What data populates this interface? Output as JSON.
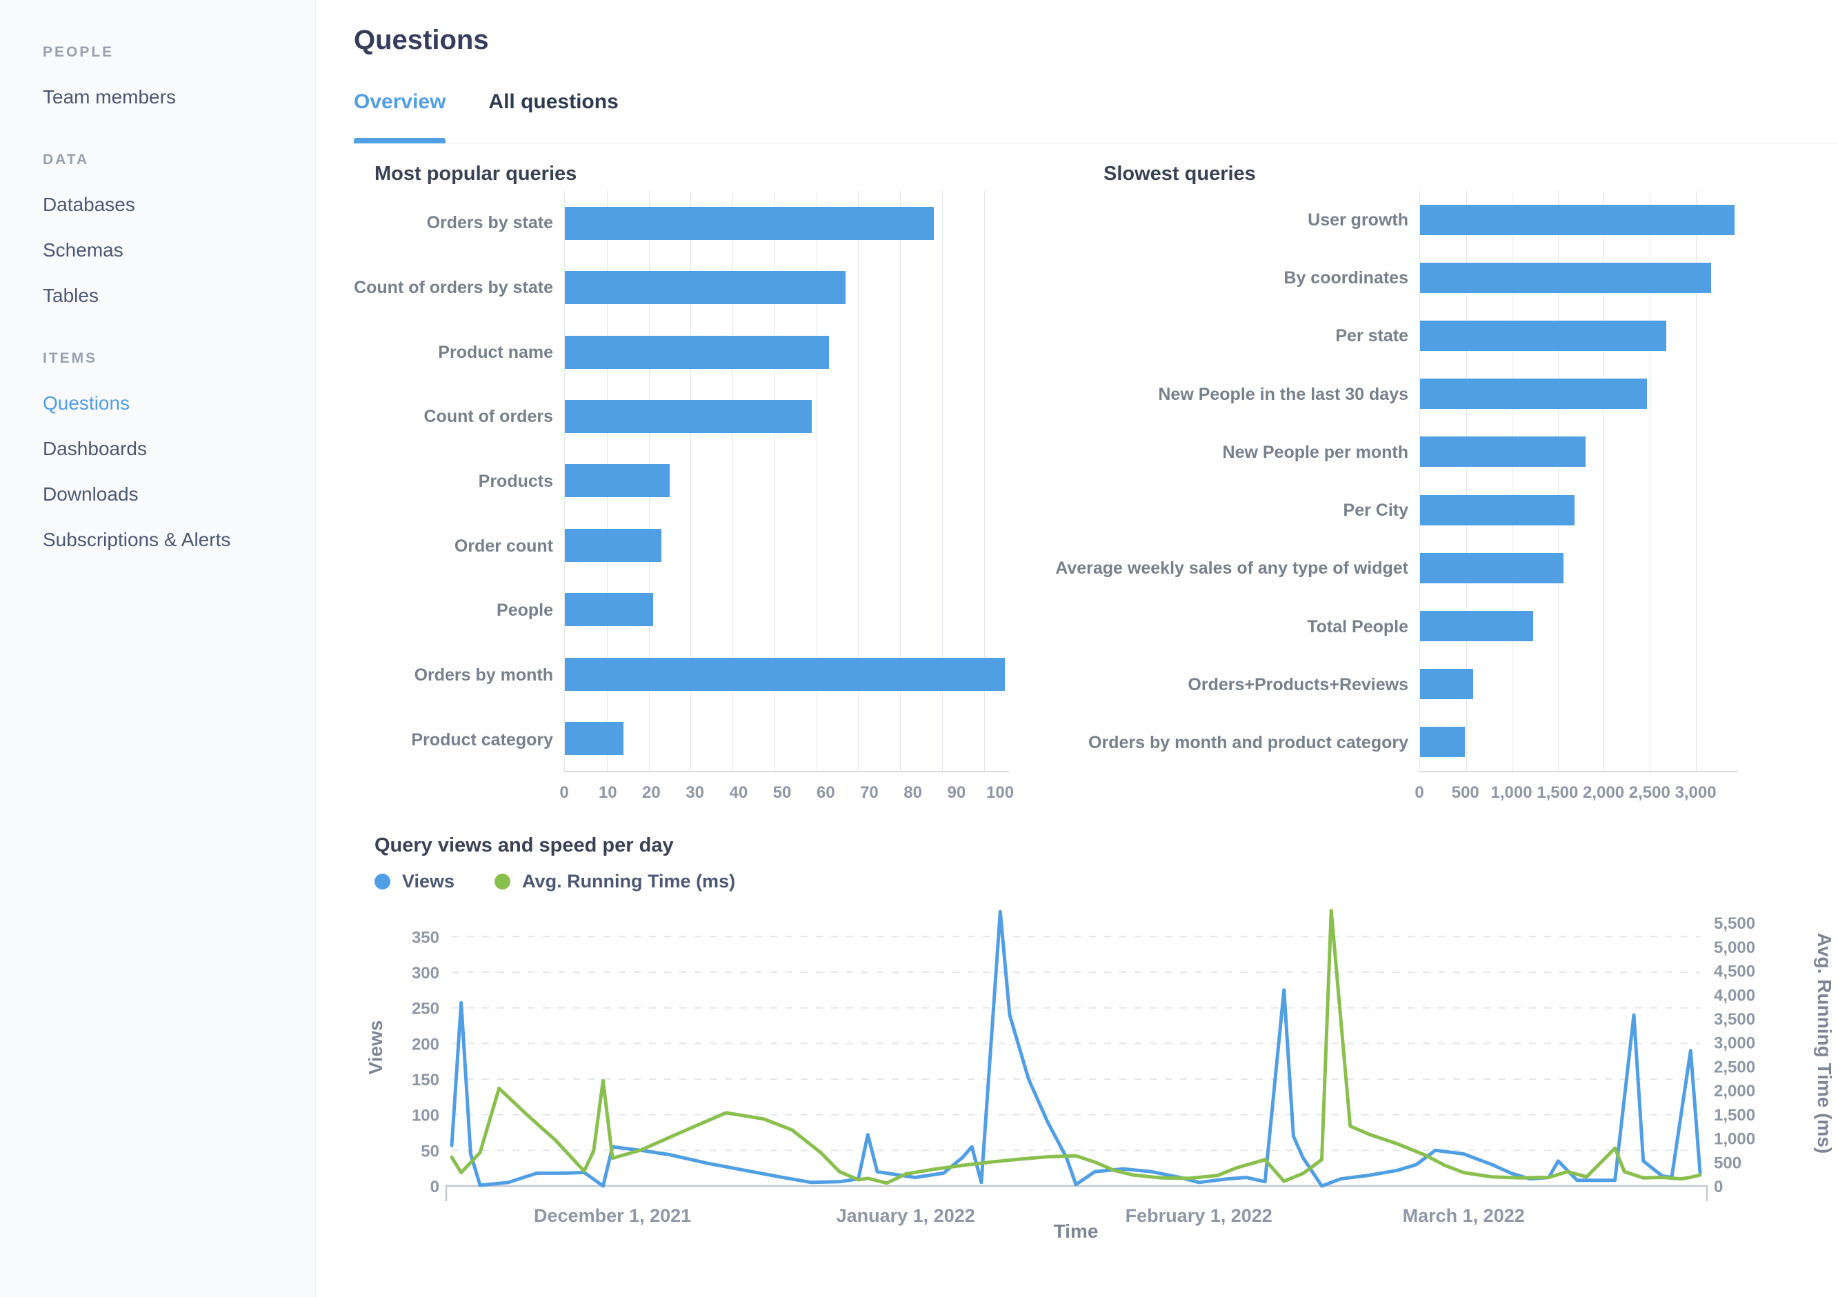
{
  "header": {
    "title": "Questions",
    "tabs": [
      {
        "label": "Overview",
        "active": true
      },
      {
        "label": "All questions",
        "active": false
      }
    ]
  },
  "sidebar": {
    "sections": [
      {
        "header": "PEOPLE",
        "items": [
          {
            "label": "Team members",
            "active": false
          }
        ]
      },
      {
        "header": "DATA",
        "items": [
          {
            "label": "Databases",
            "active": false
          },
          {
            "label": "Schemas",
            "active": false
          },
          {
            "label": "Tables",
            "active": false
          }
        ]
      },
      {
        "header": "ITEMS",
        "items": [
          {
            "label": "Questions",
            "active": true
          },
          {
            "label": "Dashboards",
            "active": false
          },
          {
            "label": "Downloads",
            "active": false
          },
          {
            "label": "Subscriptions & Alerts",
            "active": false
          }
        ]
      }
    ]
  },
  "colors": {
    "accent_blue": "#509EE3",
    "accent_green": "#88BF4D"
  },
  "chart_data": [
    {
      "type": "bar",
      "orientation": "horizontal",
      "title": "Most popular queries",
      "categories": [
        "Orders by state",
        "Count of orders by state",
        "Product name",
        "Count of orders",
        "Products",
        "Order count",
        "People",
        "Orders by month",
        "Product category"
      ],
      "values": [
        88,
        67,
        63,
        59,
        25,
        23,
        21,
        105,
        14
      ],
      "xlim": [
        0,
        106
      ],
      "grid_values": [
        0,
        10,
        20,
        30,
        40,
        50,
        60,
        70,
        80,
        90,
        100
      ],
      "tick_values": [
        0,
        10,
        20,
        30,
        40,
        50,
        60,
        70,
        80,
        90,
        100
      ],
      "tick_labels": [
        "0",
        "10",
        "20",
        "30",
        "40",
        "50",
        "60",
        "70",
        "80",
        "90",
        "100"
      ],
      "color": "#509EE3"
    },
    {
      "type": "bar",
      "orientation": "horizontal",
      "title": "Slowest queries",
      "categories": [
        "User growth",
        "By coordinates",
        "Per state",
        "New People in the last 30 days",
        "New People per month",
        "Per City",
        "Average weekly sales of any type of widget",
        "Total People",
        "Orders+Products+Reviews",
        "Orders by month and product category"
      ],
      "values": [
        3420,
        3170,
        2680,
        2470,
        1800,
        1680,
        1560,
        1230,
        580,
        490
      ],
      "xlim": [
        0,
        3460
      ],
      "grid_values": [
        0,
        500,
        1000,
        1500,
        2000,
        2500,
        3000
      ],
      "tick_values": [
        0,
        500,
        1000,
        1500,
        2000,
        2500,
        3000
      ],
      "tick_labels": [
        "0",
        "500",
        "1,000",
        "1,500",
        "2,000",
        "2,500",
        "3,000"
      ],
      "color": "#509EE3"
    },
    {
      "type": "line",
      "title": "Query views and speed per day",
      "xlabel": "Time",
      "left_axis_label": "Views",
      "right_axis_label": "Avg. Running Time (ms)",
      "x_domain": [
        0,
        132
      ],
      "left_max": 389,
      "right_max": 5790,
      "left_ticks": [
        0,
        50,
        100,
        150,
        200,
        250,
        300,
        350
      ],
      "right_ticks": [
        {
          "v": 0,
          "label": "0"
        },
        {
          "v": 500,
          "label": "500"
        },
        {
          "v": 1000,
          "label": "1,000"
        },
        {
          "v": 1500,
          "label": "1,500"
        },
        {
          "v": 2000,
          "label": "2,000"
        },
        {
          "v": 2500,
          "label": "2,500"
        },
        {
          "v": 3000,
          "label": "3,000"
        },
        {
          "v": 3500,
          "label": "3,500"
        },
        {
          "v": 4000,
          "label": "4,000"
        },
        {
          "v": 4500,
          "label": "4,500"
        },
        {
          "v": 5000,
          "label": "5,000"
        },
        {
          "v": 5500,
          "label": "5,500"
        }
      ],
      "x_ticks": [
        {
          "x": 17,
          "label": "December 1, 2021"
        },
        {
          "x": 48,
          "label": "January 1, 2022"
        },
        {
          "x": 79,
          "label": "February 1, 2022"
        },
        {
          "x": 107,
          "label": "March 1, 2022"
        }
      ],
      "series": [
        {
          "name": "Views",
          "axis": "left",
          "color": "#509EE3",
          "points": [
            [
              0,
              57
            ],
            [
              1,
              257
            ],
            [
              2,
              45
            ],
            [
              3,
              1
            ],
            [
              6,
              5
            ],
            [
              9,
              18
            ],
            [
              12,
              18
            ],
            [
              14,
              19
            ],
            [
              16,
              0
            ],
            [
              17,
              55
            ],
            [
              20,
              50
            ],
            [
              23,
              44
            ],
            [
              27,
              32
            ],
            [
              31,
              22
            ],
            [
              35,
              12
            ],
            [
              38,
              5
            ],
            [
              41,
              6
            ],
            [
              43,
              10
            ],
            [
              44,
              72
            ],
            [
              45,
              20
            ],
            [
              47,
              16
            ],
            [
              49,
              12
            ],
            [
              52,
              18
            ],
            [
              54,
              40
            ],
            [
              55,
              55
            ],
            [
              56,
              5
            ],
            [
              58,
              385
            ],
            [
              59,
              240
            ],
            [
              61,
              150
            ],
            [
              63,
              90
            ],
            [
              65,
              40
            ],
            [
              66,
              2
            ],
            [
              68,
              20
            ],
            [
              71,
              24
            ],
            [
              74,
              20
            ],
            [
              77,
              12
            ],
            [
              79,
              5
            ],
            [
              82,
              10
            ],
            [
              84,
              12
            ],
            [
              86,
              6
            ],
            [
              88,
              275
            ],
            [
              89,
              70
            ],
            [
              90,
              40
            ],
            [
              92,
              0
            ],
            [
              94,
              10
            ],
            [
              97,
              15
            ],
            [
              100,
              22
            ],
            [
              102,
              30
            ],
            [
              104,
              50
            ],
            [
              107,
              45
            ],
            [
              110,
              30
            ],
            [
              112,
              18
            ],
            [
              114,
              10
            ],
            [
              116,
              12
            ],
            [
              117,
              35
            ],
            [
              119,
              8
            ],
            [
              121,
              8
            ],
            [
              123,
              8
            ],
            [
              125,
              240
            ],
            [
              126,
              35
            ],
            [
              128,
              14
            ],
            [
              129,
              12
            ],
            [
              131,
              190
            ],
            [
              132,
              19
            ]
          ]
        },
        {
          "name": "Avg. Running Time (ms)",
          "axis": "right",
          "color": "#88BF4D",
          "points": [
            [
              0,
              600
            ],
            [
              1,
              280
            ],
            [
              3,
              700
            ],
            [
              5,
              2040
            ],
            [
              8,
              1480
            ],
            [
              11,
              950
            ],
            [
              14,
              310
            ],
            [
              15,
              730
            ],
            [
              16,
              2200
            ],
            [
              17,
              580
            ],
            [
              20,
              750
            ],
            [
              24,
              1100
            ],
            [
              29,
              1530
            ],
            [
              33,
              1400
            ],
            [
              36,
              1170
            ],
            [
              39,
              700
            ],
            [
              41,
              300
            ],
            [
              43,
              130
            ],
            [
              44,
              160
            ],
            [
              46,
              60
            ],
            [
              48,
              250
            ],
            [
              51,
              350
            ],
            [
              54,
              430
            ],
            [
              57,
              500
            ],
            [
              60,
              560
            ],
            [
              63,
              610
            ],
            [
              66,
              630
            ],
            [
              68,
              500
            ],
            [
              70,
              330
            ],
            [
              72,
              230
            ],
            [
              75,
              170
            ],
            [
              78,
              160
            ],
            [
              81,
              220
            ],
            [
              83,
              380
            ],
            [
              86,
              550
            ],
            [
              88,
              100
            ],
            [
              90,
              260
            ],
            [
              92,
              550
            ],
            [
              93,
              5750
            ],
            [
              95,
              1250
            ],
            [
              97,
              1080
            ],
            [
              100,
              880
            ],
            [
              103,
              640
            ],
            [
              105,
              430
            ],
            [
              107,
              280
            ],
            [
              110,
              190
            ],
            [
              113,
              170
            ],
            [
              116,
              180
            ],
            [
              118,
              300
            ],
            [
              120,
              190
            ],
            [
              123,
              790
            ],
            [
              124,
              300
            ],
            [
              126,
              170
            ],
            [
              128,
              180
            ],
            [
              130,
              150
            ],
            [
              131,
              180
            ],
            [
              132,
              230
            ]
          ]
        }
      ]
    }
  ]
}
